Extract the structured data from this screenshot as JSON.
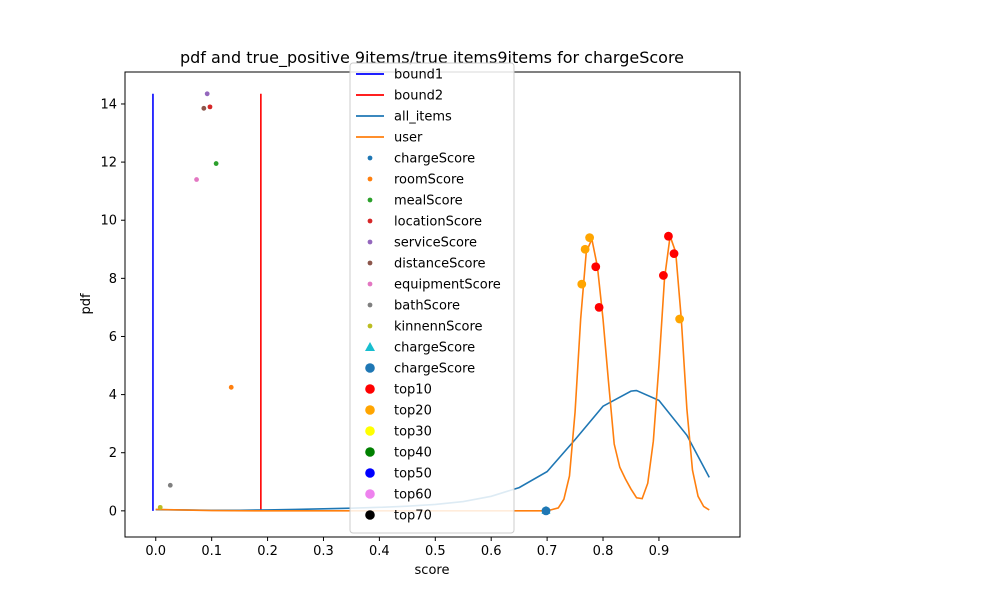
{
  "chart_data": {
    "type": "line",
    "title": "pdf and true_positive 9items/true items9items for chargeScore",
    "xlabel": "score",
    "ylabel": "pdf",
    "xlim": [
      -0.055,
      1.045
    ],
    "ylim": [
      -0.9,
      15.1
    ],
    "x_ticks": [
      0.0,
      0.1,
      0.2,
      0.3,
      0.4,
      0.5,
      0.6,
      0.7,
      0.8,
      0.9
    ],
    "x_tick_labels": [
      "0.0",
      "0.1",
      "0.2",
      "0.3",
      "0.4",
      "0.5",
      "0.6",
      "0.7",
      "0.8",
      "0.9"
    ],
    "y_ticks": [
      0,
      2,
      4,
      6,
      8,
      10,
      12,
      14
    ],
    "y_tick_labels": [
      "0",
      "2",
      "4",
      "6",
      "8",
      "10",
      "12",
      "14"
    ],
    "grid": false,
    "legend_position": "upper-center",
    "vlines": [
      {
        "name": "bound1",
        "x": -0.005,
        "ymin": 0,
        "ymax": 14.35,
        "color": "#0000ff"
      },
      {
        "name": "bound2",
        "x": 0.188,
        "ymin": 0,
        "ymax": 14.35,
        "color": "#ff0000"
      }
    ],
    "lines": [
      {
        "name": "all_items",
        "color": "#1f77b4",
        "x": [
          0.0,
          0.05,
          0.1,
          0.15,
          0.2,
          0.25,
          0.3,
          0.35,
          0.4,
          0.45,
          0.5,
          0.55,
          0.6,
          0.65,
          0.7,
          0.75,
          0.8,
          0.85,
          0.86,
          0.9,
          0.95,
          0.99
        ],
        "y": [
          0.04,
          0.03,
          0.02,
          0.02,
          0.03,
          0.05,
          0.07,
          0.09,
          0.12,
          0.16,
          0.22,
          0.32,
          0.5,
          0.8,
          1.35,
          2.45,
          3.6,
          4.12,
          4.14,
          3.8,
          2.6,
          1.15
        ]
      },
      {
        "name": "user",
        "color": "#ff7f0e",
        "x": [
          0.0,
          0.1,
          0.2,
          0.3,
          0.4,
          0.5,
          0.6,
          0.7,
          0.72,
          0.73,
          0.74,
          0.75,
          0.76,
          0.77,
          0.78,
          0.79,
          0.8,
          0.81,
          0.82,
          0.83,
          0.84,
          0.85,
          0.86,
          0.87,
          0.88,
          0.89,
          0.9,
          0.91,
          0.92,
          0.93,
          0.94,
          0.95,
          0.96,
          0.97,
          0.98,
          0.99
        ],
        "y": [
          0.05,
          0.01,
          0.0,
          0.0,
          0.0,
          0.0,
          0.0,
          0.0,
          0.1,
          0.4,
          1.2,
          3.4,
          6.6,
          8.9,
          9.35,
          8.4,
          6.6,
          4.4,
          2.3,
          1.5,
          1.1,
          0.75,
          0.45,
          0.42,
          0.95,
          2.4,
          5.0,
          8.0,
          9.45,
          8.9,
          6.6,
          3.5,
          1.4,
          0.5,
          0.15,
          0.03
        ]
      }
    ],
    "scatter_series": [
      {
        "name": "chargeScore",
        "color": "#1f77b4",
        "marker": "dot",
        "points": []
      },
      {
        "name": "roomScore",
        "color": "#ff7f0e",
        "marker": "dot",
        "points": [
          [
            0.135,
            4.25
          ]
        ]
      },
      {
        "name": "mealScore",
        "color": "#2ca02c",
        "marker": "dot",
        "points": [
          [
            0.108,
            11.95
          ]
        ]
      },
      {
        "name": "locationScore",
        "color": "#d62728",
        "marker": "dot",
        "points": [
          [
            0.097,
            13.9
          ]
        ]
      },
      {
        "name": "serviceScore",
        "color": "#9467bd",
        "marker": "dot",
        "points": [
          [
            0.092,
            14.35
          ]
        ]
      },
      {
        "name": "distanceScore",
        "color": "#8c564b",
        "marker": "dot",
        "points": [
          [
            0.086,
            13.85
          ]
        ]
      },
      {
        "name": "equipmentScore",
        "color": "#e377c2",
        "marker": "dot",
        "points": [
          [
            0.073,
            11.4
          ]
        ]
      },
      {
        "name": "bathScore",
        "color": "#7f7f7f",
        "marker": "dot",
        "points": [
          [
            0.026,
            0.88
          ]
        ]
      },
      {
        "name": "kinnennScore",
        "color": "#bcbd22",
        "marker": "dot",
        "points": [
          [
            0.008,
            0.12
          ]
        ]
      },
      {
        "name": "chargeScore",
        "color": "#17becf",
        "marker": "triangle",
        "points": [
          [
            0.698,
            0.02
          ]
        ]
      },
      {
        "name": "chargeScore",
        "color": "#1f77b4",
        "marker": "circle",
        "points": [
          [
            0.698,
            0.0
          ]
        ]
      },
      {
        "name": "top10",
        "color": "#ff0000",
        "marker": "circle",
        "points": [
          [
            0.787,
            8.4
          ],
          [
            0.793,
            7.0
          ],
          [
            0.908,
            8.1
          ],
          [
            0.917,
            9.45
          ],
          [
            0.927,
            8.85
          ]
        ]
      },
      {
        "name": "top20",
        "color": "#ffa500",
        "marker": "circle",
        "points": [
          [
            0.762,
            7.8
          ],
          [
            0.768,
            9.0
          ],
          [
            0.776,
            9.4
          ],
          [
            0.937,
            6.6
          ]
        ]
      },
      {
        "name": "top30",
        "color": "#ffff00",
        "marker": "circle",
        "points": []
      },
      {
        "name": "top40",
        "color": "#008000",
        "marker": "circle",
        "points": []
      },
      {
        "name": "top50",
        "color": "#0000ff",
        "marker": "circle",
        "points": []
      },
      {
        "name": "top60",
        "color": "#ee82ee",
        "marker": "circle",
        "points": []
      },
      {
        "name": "top70",
        "color": "#000000",
        "marker": "circle",
        "points": []
      }
    ],
    "legend_entries": [
      {
        "label": "bound1",
        "color": "#0000ff",
        "kind": "line"
      },
      {
        "label": "bound2",
        "color": "#ff0000",
        "kind": "line"
      },
      {
        "label": "all_items",
        "color": "#1f77b4",
        "kind": "line"
      },
      {
        "label": "user",
        "color": "#ff7f0e",
        "kind": "line"
      },
      {
        "label": "chargeScore",
        "color": "#1f77b4",
        "kind": "dot"
      },
      {
        "label": "roomScore",
        "color": "#ff7f0e",
        "kind": "dot"
      },
      {
        "label": "mealScore",
        "color": "#2ca02c",
        "kind": "dot"
      },
      {
        "label": "locationScore",
        "color": "#d62728",
        "kind": "dot"
      },
      {
        "label": "serviceScore",
        "color": "#9467bd",
        "kind": "dot"
      },
      {
        "label": "distanceScore",
        "color": "#8c564b",
        "kind": "dot"
      },
      {
        "label": "equipmentScore",
        "color": "#e377c2",
        "kind": "dot"
      },
      {
        "label": "bathScore",
        "color": "#7f7f7f",
        "kind": "dot"
      },
      {
        "label": "kinnennScore",
        "color": "#bcbd22",
        "kind": "dot"
      },
      {
        "label": "chargeScore",
        "color": "#17becf",
        "kind": "triangle"
      },
      {
        "label": "chargeScore",
        "color": "#1f77b4",
        "kind": "circle"
      },
      {
        "label": "top10",
        "color": "#ff0000",
        "kind": "circle"
      },
      {
        "label": "top20",
        "color": "#ffa500",
        "kind": "circle"
      },
      {
        "label": "top30",
        "color": "#ffff00",
        "kind": "circle"
      },
      {
        "label": "top40",
        "color": "#008000",
        "kind": "circle"
      },
      {
        "label": "top50",
        "color": "#0000ff",
        "kind": "circle"
      },
      {
        "label": "top60",
        "color": "#ee82ee",
        "kind": "circle"
      },
      {
        "label": "top70",
        "color": "#000000",
        "kind": "circle"
      }
    ]
  }
}
